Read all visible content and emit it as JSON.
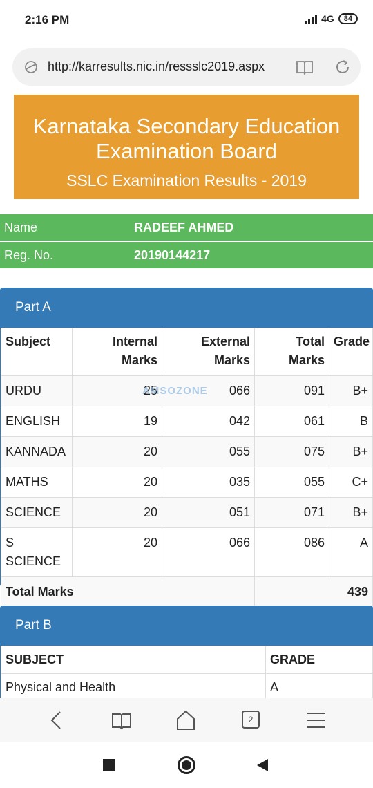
{
  "status_bar": {
    "time": "2:16 PM",
    "network": "4G",
    "battery": "84"
  },
  "browser": {
    "url": "http://karresults.nic.in/ressslc2019.aspx",
    "tab_count": "2"
  },
  "banner": {
    "title": "Karnataka Secondary Education Examination Board",
    "subtitle": "SSLC Examination Results - 2019",
    "color": "#e79d2f"
  },
  "student": {
    "name_label": "Name",
    "name_value": "RADEEF AHMED",
    "reg_label": "Reg. No.",
    "reg_value": "20190144217"
  },
  "watermark": "AMSOZONE",
  "part_a": {
    "heading": "Part A",
    "headers": [
      "Subject",
      "Internal Marks",
      "External Marks",
      "Total Marks",
      "Grade"
    ],
    "rows": [
      [
        "URDU",
        "25",
        "066",
        "091",
        "B+"
      ],
      [
        "ENGLISH",
        "19",
        "042",
        "061",
        "B"
      ],
      [
        "KANNADA",
        "20",
        "055",
        "075",
        "B+"
      ],
      [
        "MATHS",
        "20",
        "035",
        "055",
        "C+"
      ],
      [
        "SCIENCE",
        "20",
        "051",
        "071",
        "B+"
      ],
      [
        "S SCIENCE",
        "20",
        "066",
        "086",
        "A"
      ]
    ],
    "total_label": "Total Marks",
    "total_value": "439"
  },
  "part_b": {
    "heading": "Part B",
    "headers": [
      "SUBJECT",
      "GRADE"
    ],
    "rows": [
      [
        "Physical and Health",
        "A"
      ]
    ]
  },
  "colors": {
    "panel_blue": "#337ab7",
    "info_green": "#5cb85c"
  }
}
